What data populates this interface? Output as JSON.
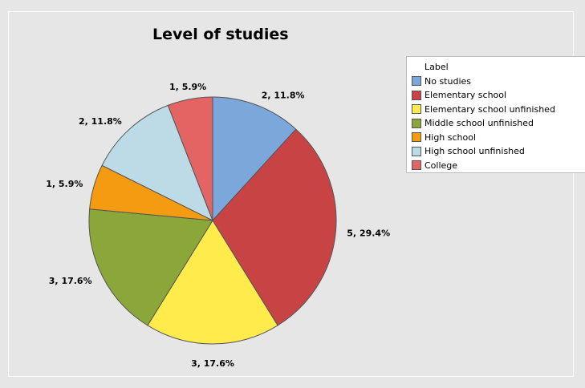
{
  "chart_data": {
    "type": "pie",
    "title": "Level of studies",
    "legend_title": "Label",
    "legend_position": "right",
    "slices": [
      {
        "name": "No studies",
        "count": 2,
        "percent": 11.8,
        "label": "2, 11.8%",
        "color": "#7ba7da"
      },
      {
        "name": "Elementary school",
        "count": 5,
        "percent": 29.4,
        "label": "5, 29.4%",
        "color": "#c84444"
      },
      {
        "name": "Elementary school unfinished",
        "count": 3,
        "percent": 17.6,
        "label": "3, 17.6%",
        "color": "#ffeb4c"
      },
      {
        "name": "Middle school unfinished",
        "count": 3,
        "percent": 17.6,
        "label": "3, 17.6%",
        "color": "#8ba73a"
      },
      {
        "name": "High school",
        "count": 1,
        "percent": 5.9,
        "label": "1, 5.9%",
        "color": "#f59b11"
      },
      {
        "name": "High school unfinished",
        "count": 2,
        "percent": 11.8,
        "label": "2, 11.8%",
        "color": "#bcdbe6"
      },
      {
        "name": "College",
        "count": 1,
        "percent": 5.9,
        "label": "1, 5.9%",
        "color": "#e46464"
      }
    ]
  }
}
